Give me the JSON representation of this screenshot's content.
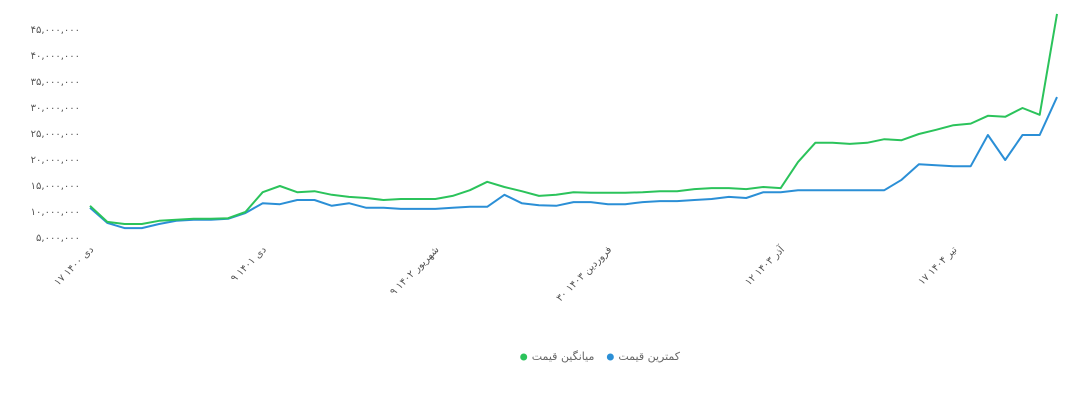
{
  "chart_data": {
    "type": "line",
    "categories": [
      "۱۷ دی ۱۴۰۰",
      null,
      null,
      null,
      null,
      null,
      null,
      null,
      null,
      null,
      "۹ دی ۱۴۰۱",
      null,
      null,
      null,
      null,
      null,
      null,
      null,
      null,
      null,
      "۹ شهریور ۱۴۰۲",
      null,
      null,
      null,
      null,
      null,
      null,
      null,
      null,
      null,
      "۳۰ فروردین ۱۴۰۳",
      null,
      null,
      null,
      null,
      null,
      null,
      null,
      null,
      null,
      "۱۲ آذر ۱۴۰۳",
      null,
      null,
      null,
      null,
      null,
      null,
      null,
      null,
      null,
      "۱۷ تیر ۱۴۰۴",
      null,
      null,
      null,
      null,
      null,
      null
    ],
    "series": [
      {
        "name": "کمترین قیمت",
        "color": "#2b8fd6",
        "values": [
          10800000,
          7900000,
          6900000,
          6900000,
          7700000,
          8300000,
          8500000,
          8500000,
          8700000,
          9800000,
          11700000,
          11500000,
          12300000,
          12300000,
          11200000,
          11700000,
          10800000,
          10800000,
          10600000,
          10600000,
          10600000,
          10800000,
          11000000,
          11000000,
          13300000,
          11700000,
          11300000,
          11200000,
          11900000,
          11900000,
          11500000,
          11500000,
          11900000,
          12100000,
          12100000,
          12300000,
          12500000,
          12900000,
          12700000,
          13800000,
          13800000,
          14200000,
          14200000,
          14200000,
          14200000,
          14200000,
          14200000,
          16200000,
          19200000,
          19000000,
          18800000,
          18800000,
          24800000,
          20000000,
          24800000,
          24800000,
          32100000
        ]
      },
      {
        "name": "میانگین قیمت",
        "color": "#2bc35b",
        "values": [
          11200000,
          8100000,
          7700000,
          7700000,
          8300000,
          8500000,
          8700000,
          8700000,
          8800000,
          10000000,
          13800000,
          15000000,
          13800000,
          14000000,
          13300000,
          12900000,
          12700000,
          12300000,
          12500000,
          12500000,
          12500000,
          13100000,
          14200000,
          15800000,
          14800000,
          14000000,
          13100000,
          13300000,
          13800000,
          13700000,
          13700000,
          13700000,
          13800000,
          14000000,
          14000000,
          14400000,
          14600000,
          14600000,
          14400000,
          14800000,
          14600000,
          19600000,
          23300000,
          23300000,
          23100000,
          23300000,
          24000000,
          23800000,
          25000000,
          25800000,
          26700000,
          27000000,
          28500000,
          28300000,
          30000000,
          28700000,
          48100000
        ]
      }
    ],
    "ylim": [
      5000000,
      49000000
    ],
    "yticks": [
      {
        "value": 5000000,
        "label": "۵,۰۰۰,۰۰۰"
      },
      {
        "value": 10000000,
        "label": "۱۰,۰۰۰,۰۰۰"
      },
      {
        "value": 15000000,
        "label": "۱۵,۰۰۰,۰۰۰"
      },
      {
        "value": 20000000,
        "label": "۲۰,۰۰۰,۰۰۰"
      },
      {
        "value": 25000000,
        "label": "۲۵,۰۰۰,۰۰۰"
      },
      {
        "value": 30000000,
        "label": "۳۰,۰۰۰,۰۰۰"
      },
      {
        "value": 35000000,
        "label": "۳۵,۰۰۰,۰۰۰"
      },
      {
        "value": 40000000,
        "label": "۴۰,۰۰۰,۰۰۰"
      },
      {
        "value": 45000000,
        "label": "۴۵,۰۰۰,۰۰۰"
      }
    ],
    "grid": false
  }
}
